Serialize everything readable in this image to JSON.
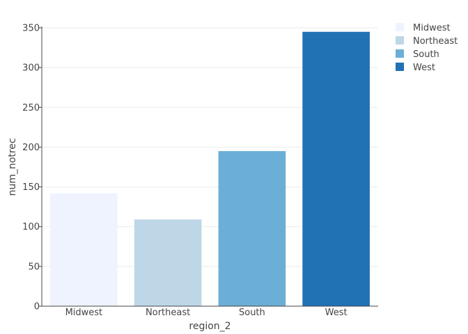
{
  "chart_data": {
    "type": "bar",
    "title": "",
    "xlabel": "region_2",
    "ylabel": "num_notrec",
    "categories": [
      "Midwest",
      "Northeast",
      "South",
      "West"
    ],
    "values": [
      142,
      109,
      195,
      345
    ],
    "colors": [
      "#eff3ff",
      "#bdd7e7",
      "#6baed6",
      "#2171b5"
    ],
    "ylim": [
      0,
      350
    ],
    "yticks": [
      0,
      50,
      100,
      150,
      200,
      250,
      300,
      350
    ],
    "grid": true,
    "legend": {
      "position": "top-right",
      "entries": [
        "Midwest",
        "Northeast",
        "South",
        "West"
      ]
    }
  }
}
